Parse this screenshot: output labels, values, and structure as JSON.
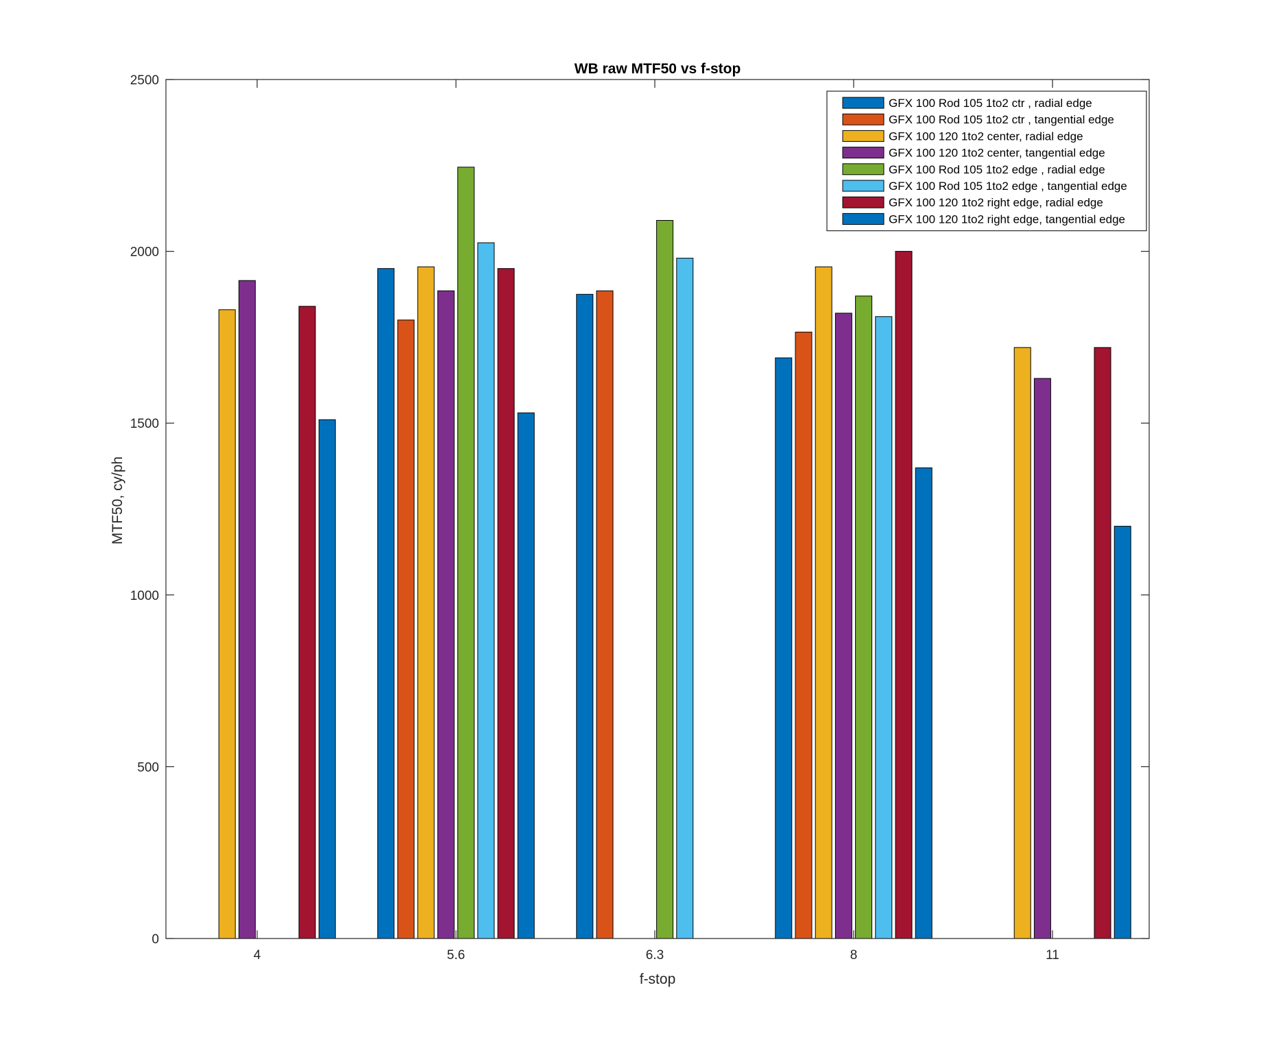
{
  "chart_data": {
    "type": "bar",
    "title": "WB raw MTF50 vs f-stop",
    "xlabel": "f-stop",
    "ylabel": "MTF50, cy/ph",
    "categories": [
      "4",
      "5.6",
      "6.3",
      "8",
      "11"
    ],
    "ylim": [
      0,
      2500
    ],
    "yticks": [
      "0",
      "500",
      "1000",
      "1500",
      "2000",
      "2500"
    ],
    "grid": false,
    "legend_position": "top-right",
    "series": [
      {
        "name": "GFX 100 Rod 105 1to2 ctr , radial edge",
        "color": "#0072BD",
        "values": [
          null,
          1950,
          1875,
          1690,
          null
        ]
      },
      {
        "name": "GFX 100 Rod 105 1to2 ctr , tangential edge",
        "color": "#D95319",
        "values": [
          null,
          1800,
          1885,
          1765,
          null
        ]
      },
      {
        "name": "GFX 100 120 1to2 center, radial edge",
        "color": "#EDB120",
        "values": [
          1830,
          1955,
          null,
          1955,
          1720
        ]
      },
      {
        "name": "GFX 100 120 1to2 center, tangential edge",
        "color": "#7E2F8E",
        "values": [
          1915,
          1885,
          null,
          1820,
          1630
        ]
      },
      {
        "name": "GFX 100 Rod 105 1to2 edge , radial edge",
        "color": "#77AC30",
        "values": [
          null,
          2245,
          2090,
          1870,
          null
        ]
      },
      {
        "name": "GFX 100 Rod 105 1to2 edge , tangential edge",
        "color": "#4DBEEE",
        "values": [
          null,
          2025,
          1980,
          1810,
          null
        ]
      },
      {
        "name": "GFX 100 120 1to2 right edge, radial edge",
        "color": "#A2142F",
        "values": [
          1840,
          1950,
          null,
          2000,
          1720
        ]
      },
      {
        "name": "GFX 100 120 1to2 right edge, tangential edge",
        "color": "#0072BD",
        "values": [
          1510,
          1530,
          null,
          1370,
          1200
        ]
      }
    ]
  }
}
